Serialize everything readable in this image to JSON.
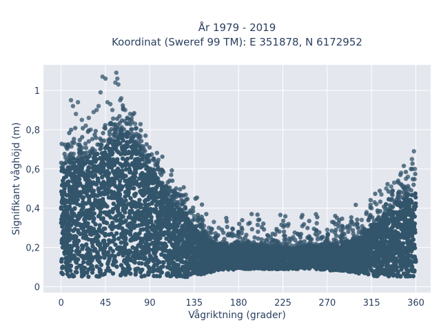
{
  "chart_data": {
    "type": "scatter",
    "title_line1": "År 1979 - 2019",
    "title_line2": "Koordinat (Sweref 99 TM): E 351878, N 6172952",
    "xlabel": "Vågriktning (grader)",
    "ylabel": "Signifikant våghöjd (m)",
    "xlim": [
      -18,
      375
    ],
    "ylim": [
      -0.03,
      1.13
    ],
    "xticks": [
      0,
      45,
      90,
      135,
      180,
      225,
      270,
      315,
      360
    ],
    "xtick_labels": [
      "0",
      "45",
      "90",
      "135",
      "180",
      "225",
      "270",
      "315",
      "360"
    ],
    "yticks": [
      0,
      0.2,
      0.4,
      0.6,
      0.8,
      1
    ],
    "ytick_labels": [
      "0",
      "0,2",
      "0,4",
      "0,6",
      "0,8",
      "1"
    ],
    "grid": true,
    "colors": {
      "marker": "#33556b",
      "plot_bg": "#e5e7ef",
      "grid": "#ffffff",
      "text": "#2a3f5f"
    },
    "envelope": {
      "x": [
        0,
        10,
        20,
        30,
        40,
        50,
        60,
        70,
        80,
        90,
        100,
        110,
        120,
        130,
        140,
        150,
        160,
        180,
        200,
        220,
        240,
        260,
        280,
        300,
        310,
        320,
        330,
        340,
        350,
        355,
        360
      ],
      "y_upper": [
        0.6,
        0.66,
        0.64,
        0.66,
        0.7,
        0.74,
        0.78,
        0.76,
        0.68,
        0.6,
        0.54,
        0.46,
        0.4,
        0.34,
        0.28,
        0.24,
        0.22,
        0.21,
        0.21,
        0.2,
        0.2,
        0.2,
        0.22,
        0.24,
        0.28,
        0.34,
        0.38,
        0.42,
        0.46,
        0.48,
        0.48
      ],
      "y_lower": [
        0.05,
        0.05,
        0.05,
        0.05,
        0.05,
        0.05,
        0.05,
        0.05,
        0.05,
        0.05,
        0.05,
        0.05,
        0.05,
        0.05,
        0.06,
        0.07,
        0.08,
        0.09,
        0.09,
        0.09,
        0.09,
        0.09,
        0.08,
        0.07,
        0.06,
        0.05,
        0.05,
        0.05,
        0.05,
        0.05,
        0.05
      ]
    },
    "outliers": {
      "x": [
        10,
        12,
        15,
        17,
        21,
        25,
        28,
        30,
        33,
        36,
        38,
        40,
        42,
        45,
        47,
        50,
        52,
        55,
        56,
        57,
        58,
        60,
        61,
        63,
        65,
        67,
        70,
        72,
        75,
        80,
        85,
        88,
        95,
        100,
        110,
        115,
        120,
        125,
        130,
        135,
        140,
        145,
        150,
        155,
        160,
        170,
        180,
        190,
        200,
        210,
        220,
        230,
        240,
        250,
        260,
        270,
        275,
        280,
        285,
        290,
        295,
        300,
        305,
        310,
        315,
        318,
        320,
        325,
        330,
        335,
        338,
        342,
        345,
        348,
        350,
        352,
        355,
        356,
        358,
        359
      ],
      "y": [
        0.95,
        0.92,
        0.88,
        0.94,
        0.85,
        0.82,
        0.86,
        0.8,
        0.89,
        0.9,
        0.92,
        0.99,
        1.07,
        1.06,
        0.94,
        0.93,
        0.9,
        1.04,
        1.09,
        1.06,
        1.03,
        0.95,
        0.96,
        0.91,
        0.9,
        0.86,
        0.88,
        0.84,
        0.83,
        0.72,
        0.63,
        0.6,
        0.57,
        0.52,
        0.54,
        0.49,
        0.47,
        0.43,
        0.38,
        0.36,
        0.34,
        0.31,
        0.3,
        0.33,
        0.3,
        0.27,
        0.28,
        0.32,
        0.34,
        0.26,
        0.23,
        0.31,
        0.27,
        0.25,
        0.26,
        0.29,
        0.33,
        0.35,
        0.31,
        0.3,
        0.33,
        0.32,
        0.34,
        0.38,
        0.4,
        0.43,
        0.42,
        0.47,
        0.5,
        0.51,
        0.53,
        0.54,
        0.58,
        0.5,
        0.55,
        0.56,
        0.6,
        0.65,
        0.69,
        0.6
      ]
    }
  }
}
